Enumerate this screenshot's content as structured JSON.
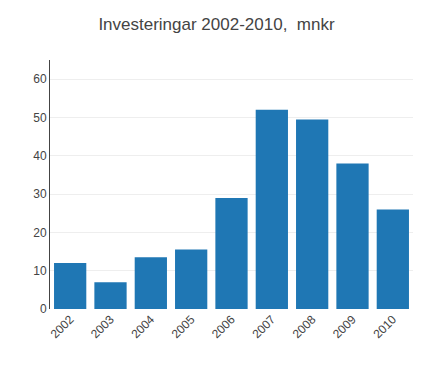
{
  "chart_data": {
    "type": "bar",
    "title": "Investeringar 2002-2010,  mnkr",
    "categories": [
      "2002",
      "2003",
      "2004",
      "2005",
      "2006",
      "2007",
      "2008",
      "2009",
      "2010"
    ],
    "values": [
      12,
      7,
      13.5,
      15.5,
      29,
      52,
      49.5,
      38,
      26
    ],
    "ylim": [
      0,
      65
    ],
    "yticks": [
      0,
      10,
      20,
      30,
      40,
      50,
      60
    ],
    "grid": true
  }
}
